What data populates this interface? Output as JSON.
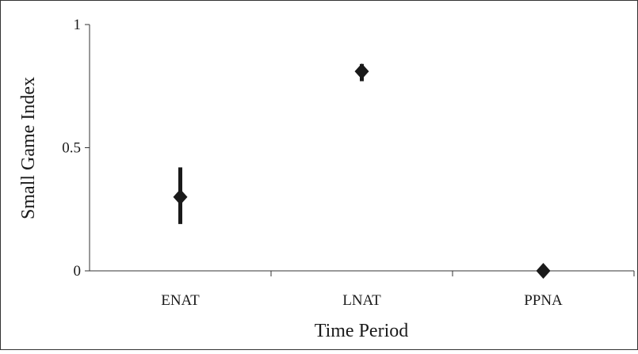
{
  "chart_data": {
    "type": "scatter",
    "xlabel": "Time Period",
    "ylabel": "Small Game Index",
    "ylim": [
      0,
      1
    ],
    "yticks": [
      0,
      0.5,
      1
    ],
    "ytick_labels": [
      "0",
      "0.5",
      "1"
    ],
    "categories": [
      "ENAT",
      "LNAT",
      "PPNA"
    ],
    "points": [
      {
        "category": "ENAT",
        "y": 0.3,
        "err_low": 0.19,
        "err_high": 0.42
      },
      {
        "category": "LNAT",
        "y": 0.81,
        "err_low": 0.77,
        "err_high": 0.84
      },
      {
        "category": "PPNA",
        "y": 0.0,
        "err_low": 0.0,
        "err_high": 0.0
      }
    ],
    "marker": "diamond",
    "grid": false,
    "legend": "none",
    "colors": {
      "marker": "#1a1a1a",
      "axis": "#333333",
      "frame": "#333333"
    }
  }
}
